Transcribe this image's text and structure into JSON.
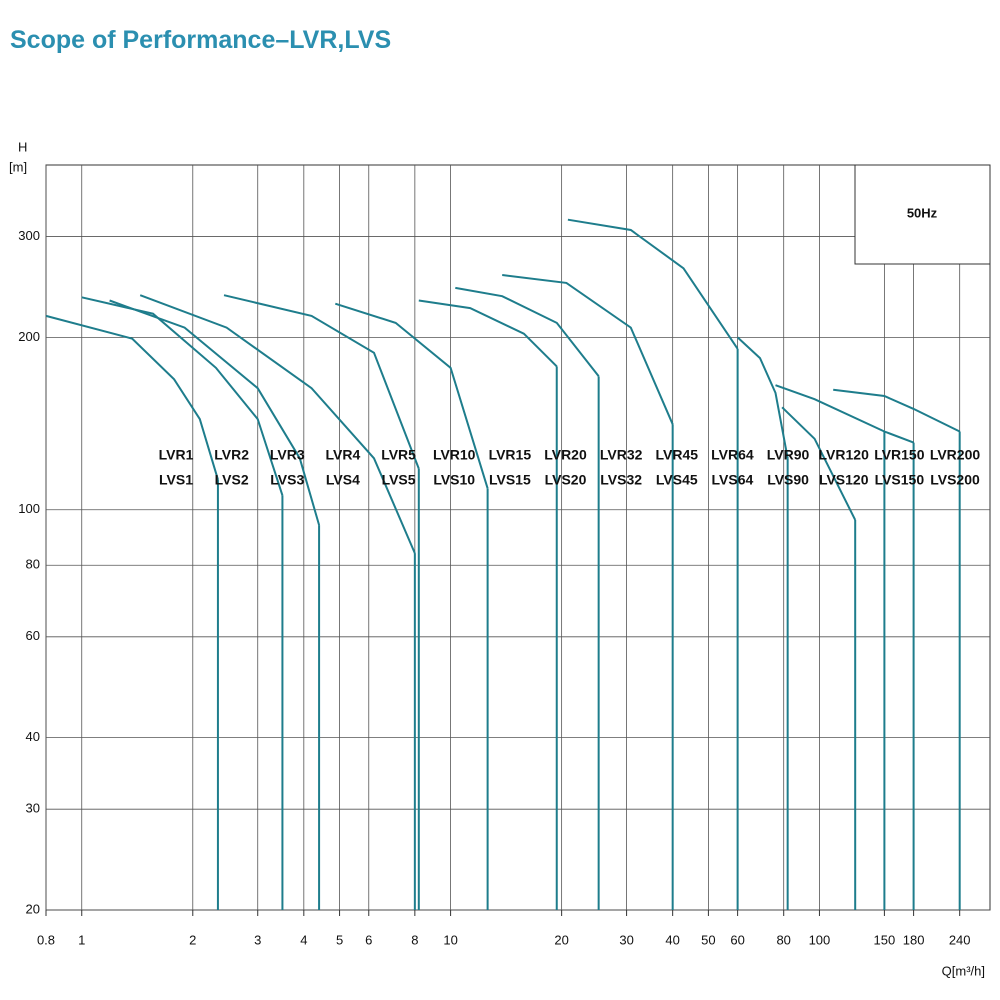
{
  "chart_data": {
    "type": "line",
    "title": "Scope of Performance–LVR,LVS",
    "y_label": "H",
    "y_unit": "[m]",
    "x_label": "Q[m³/h]",
    "annotation": "50Hz",
    "xscale": "log",
    "yscale": "log",
    "grid": true,
    "xlim": [
      0.8,
      290
    ],
    "ylim": [
      20,
      400
    ],
    "xticks": [
      0.8,
      1,
      2,
      3,
      4,
      5,
      6,
      8,
      10,
      20,
      30,
      40,
      50,
      60,
      80,
      100,
      150,
      180,
      240
    ],
    "yticks": [
      20,
      30,
      40,
      60,
      80,
      100,
      200,
      300
    ],
    "series": [
      {
        "name": "LVR1",
        "alt_name": "LVS1",
        "color": "#1e7d8c",
        "x": [
          0.8,
          1.37,
          1.78,
          2.09,
          2.34
        ],
        "values": [
          218,
          199,
          169,
          144,
          113
        ]
      },
      {
        "name": "LVR2",
        "alt_name": "LVS2",
        "color": "#1e7d8c",
        "x": [
          1.0,
          1.56,
          2.31,
          3.0,
          3.5
        ],
        "values": [
          235,
          220,
          177,
          144,
          106
        ]
      },
      {
        "name": "LVR3",
        "alt_name": "LVS3",
        "color": "#1e7d8c",
        "x": [
          1.19,
          1.9,
          3.0,
          3.9,
          4.4
        ],
        "values": [
          232,
          208,
          163,
          123,
          94
        ]
      },
      {
        "name": "LVR4",
        "alt_name": "LVS4",
        "color": "#1e7d8c",
        "x": [
          1.44,
          2.47,
          4.2,
          6.2,
          8.0
        ],
        "values": [
          237,
          208,
          163,
          123,
          84
        ]
      },
      {
        "name": "LVR5",
        "alt_name": "LVS5",
        "color": "#1e7d8c",
        "x": [
          2.43,
          4.2,
          6.2,
          8.2
        ],
        "values": [
          237,
          218,
          188,
          118
        ]
      },
      {
        "name": "LVR10",
        "alt_name": "LVS10",
        "color": "#1e7d8c",
        "x": [
          4.87,
          7.1,
          10,
          12.6
        ],
        "values": [
          229,
          212,
          177,
          109
        ]
      },
      {
        "name": "LVR15",
        "alt_name": "LVS15",
        "color": "#1e7d8c",
        "x": [
          8.2,
          11.3,
          15.8,
          19.4
        ],
        "values": [
          232,
          225,
          203,
          178
        ]
      },
      {
        "name": "LVR20",
        "alt_name": "LVS20",
        "color": "#1e7d8c",
        "x": [
          10.3,
          13.8,
          19.4,
          25.2
        ],
        "values": [
          244,
          236,
          212,
          171
        ]
      },
      {
        "name": "LVR32",
        "alt_name": "LVS32",
        "color": "#1e7d8c",
        "x": [
          13.8,
          20.6,
          30.8,
          40
        ],
        "values": [
          257,
          249,
          208,
          141
        ]
      },
      {
        "name": "LVR45",
        "alt_name": "LVS45",
        "color": "#1e7d8c",
        "x": [
          20.8,
          30.8,
          42.8,
          60
        ],
        "values": [
          321,
          308,
          264,
          191
        ]
      },
      {
        "name": "LVR64",
        "alt_name": "LVS64",
        "color": "#1e7d8c",
        "x": [
          60,
          69,
          76,
          82
        ],
        "values": [
          200,
          184,
          160,
          123
        ]
      },
      {
        "name": "LVR90",
        "alt_name": "LVS90",
        "color": "#1e7d8c",
        "x": [
          79.2,
          97,
          125
        ],
        "values": [
          151,
          133,
          96
        ]
      },
      {
        "name": "LVR120",
        "alt_name": "LVS120",
        "color": "#1e7d8c",
        "x": [
          76,
          97,
          150
        ],
        "values": [
          165,
          156,
          137
        ]
      },
      {
        "name": "LVR150",
        "alt_name": "LVS150",
        "color": "#1e7d8c",
        "x": [
          150,
          180
        ],
        "values": [
          137,
          131
        ]
      },
      {
        "name": "LVR200",
        "alt_name": "LVS200",
        "color": "#1e7d8c",
        "x": [
          109,
          150,
          180,
          240
        ],
        "values": [
          162,
          158,
          150,
          137
        ]
      }
    ]
  }
}
